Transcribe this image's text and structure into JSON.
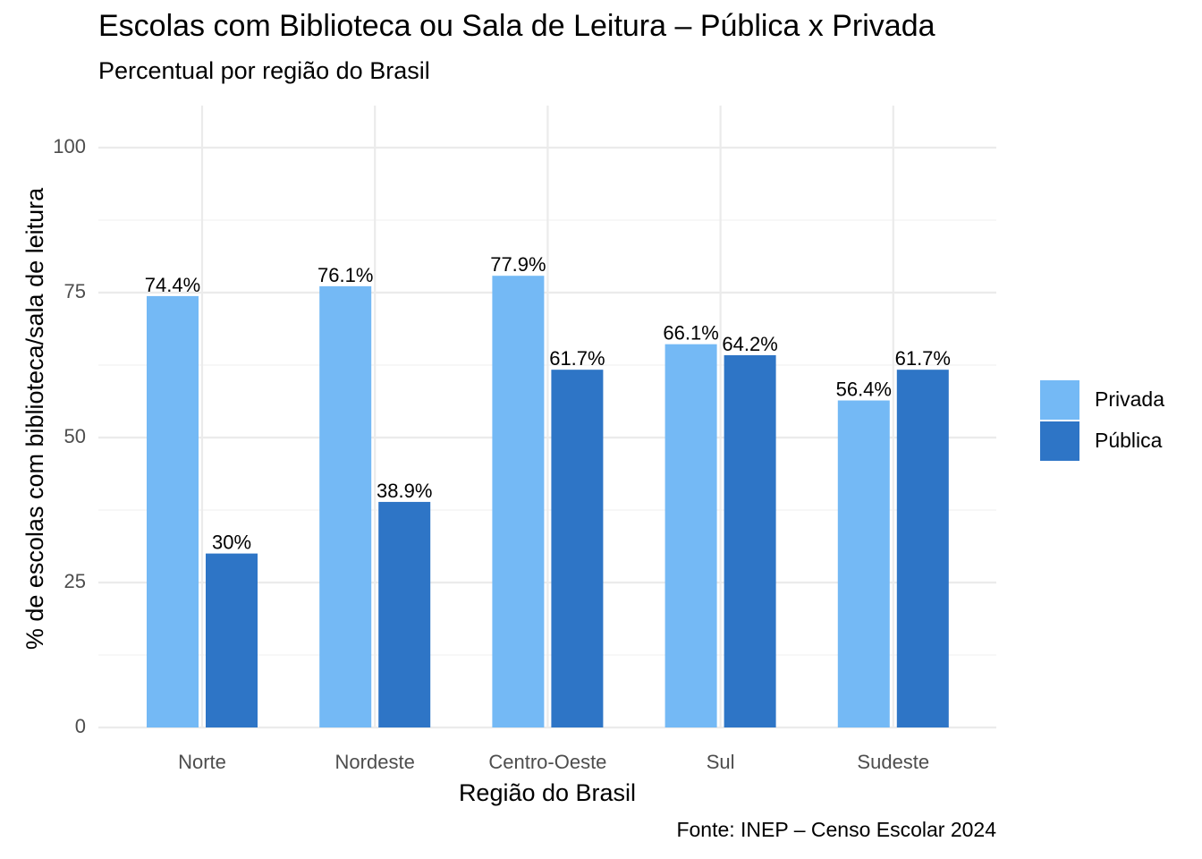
{
  "chart_data": {
    "type": "bar",
    "title": "Escolas com Biblioteca ou Sala de Leitura – Pública x Privada",
    "subtitle": "Percentual por região do Brasil",
    "caption": "Fonte: INEP – Censo Escolar 2024",
    "xlabel": "Região do Brasil",
    "ylabel": "% de escolas com biblioteca/sala de leitura",
    "categories": [
      "Norte",
      "Nordeste",
      "Centro-Oeste",
      "Sul",
      "Sudeste"
    ],
    "yticks": [
      "0",
      "25",
      "50",
      "75",
      "100"
    ],
    "ylim": [
      0,
      100
    ],
    "grid": true,
    "legend_position": "right",
    "series": [
      {
        "name": "Privada",
        "color": "#74B9F5",
        "values": [
          74.4,
          76.1,
          77.9,
          66.1,
          56.4
        ],
        "labels": [
          "74.4%",
          "76.1%",
          "77.9%",
          "66.1%",
          "56.4%"
        ]
      },
      {
        "name": "Pública",
        "color": "#2E75C6",
        "values": [
          30,
          38.9,
          61.7,
          64.2,
          61.7
        ],
        "labels": [
          "30%",
          "38.9%",
          "61.7%",
          "64.2%",
          "61.7%"
        ]
      }
    ]
  }
}
